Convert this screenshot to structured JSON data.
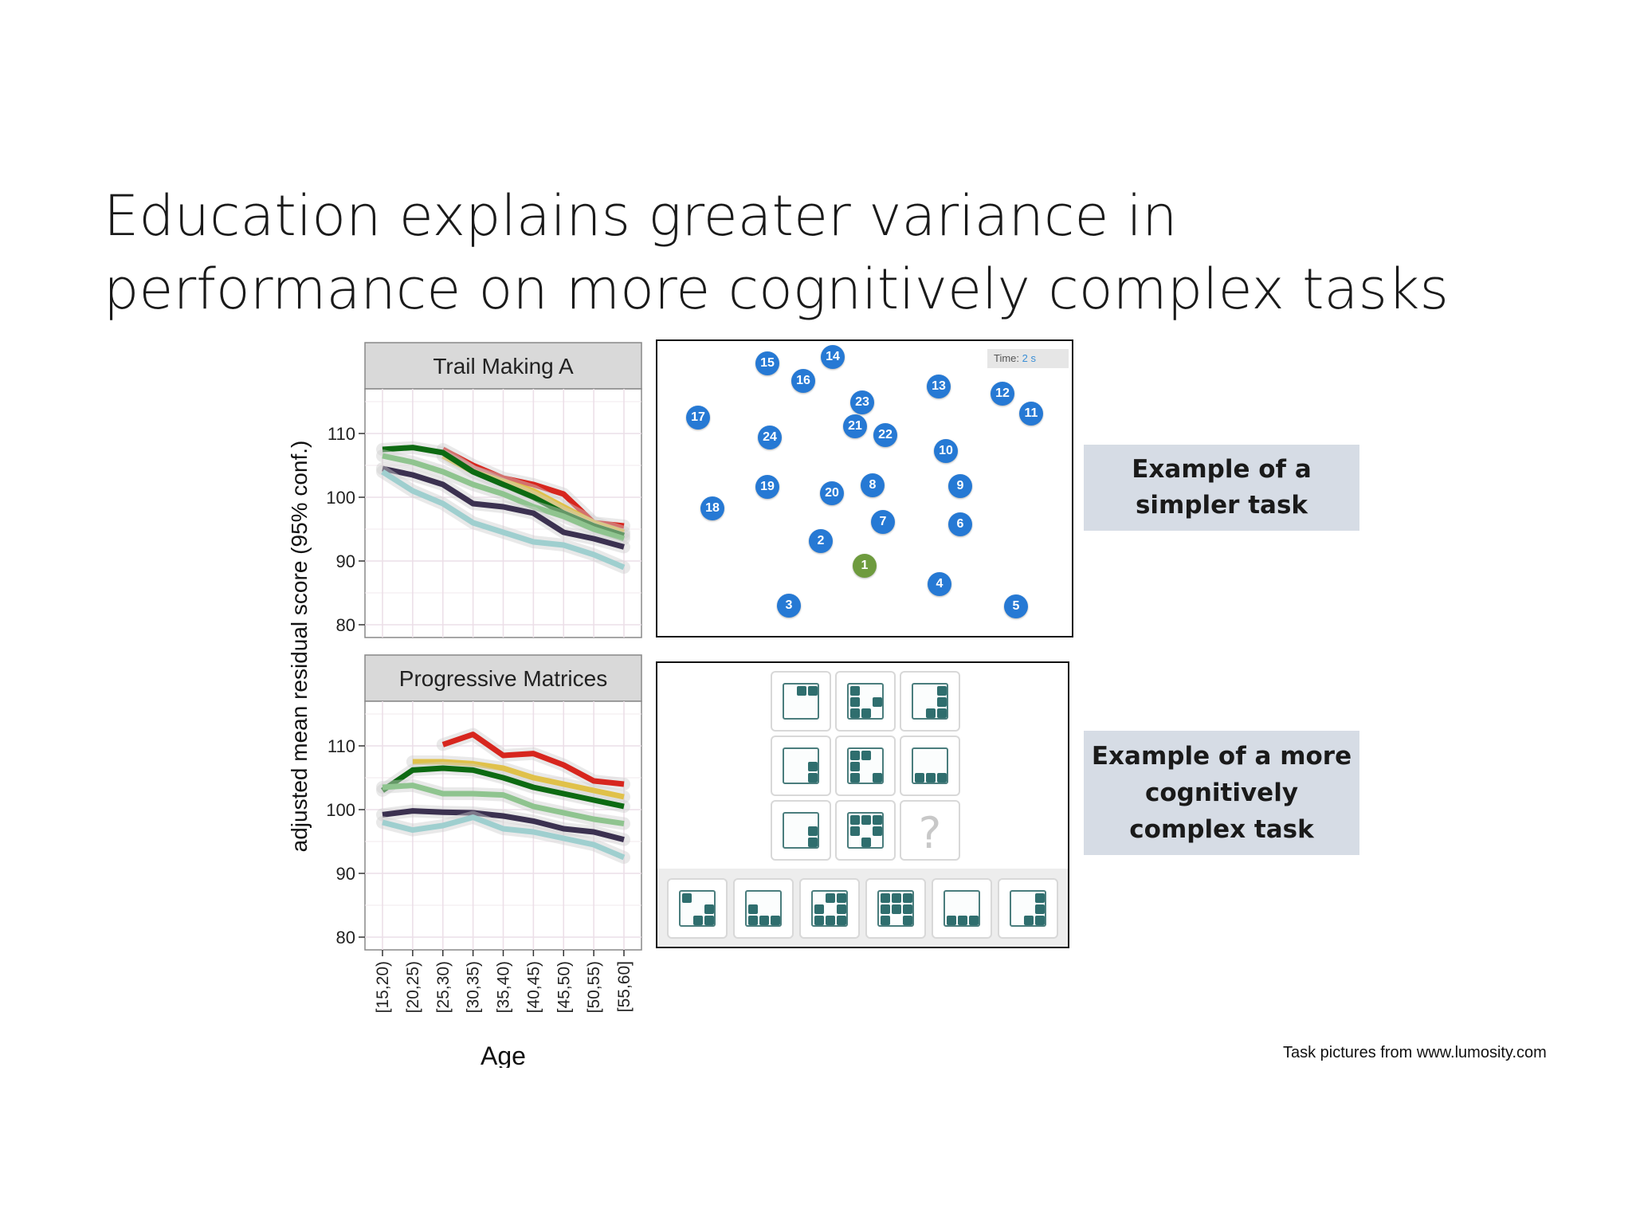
{
  "slide": {
    "title_line1": "Education explains greater variance in",
    "title_line2": "performance on more cognitively complex tasks",
    "example_simple": [
      "Example of a",
      "simpler task"
    ],
    "example_complex": [
      "Example of a more",
      "cognitively",
      "complex task"
    ],
    "credit": "Task pictures from www.lumosity.com"
  },
  "trail_task": {
    "time_label": "Time:",
    "time_value": "2 s",
    "dots": [
      {
        "label": "1",
        "start": true
      },
      {
        "label": "2"
      },
      {
        "label": "3"
      },
      {
        "label": "4"
      },
      {
        "label": "5"
      },
      {
        "label": "6"
      },
      {
        "label": "7"
      },
      {
        "label": "8"
      },
      {
        "label": "9"
      },
      {
        "label": "10"
      },
      {
        "label": "11"
      },
      {
        "label": "12"
      },
      {
        "label": "13"
      },
      {
        "label": "14"
      },
      {
        "label": "15"
      },
      {
        "label": "16"
      },
      {
        "label": "17"
      },
      {
        "label": "18"
      },
      {
        "label": "19"
      },
      {
        "label": "20"
      },
      {
        "label": "21"
      },
      {
        "label": "22"
      },
      {
        "label": "23"
      },
      {
        "label": "24"
      }
    ]
  },
  "matrix_task": {
    "question_mark": "?",
    "grid_icons": [
      "sq-top-right-2",
      "sq-l-shape",
      "sq-stair",
      "sq-right-2",
      "sq-t-shape",
      "sq-bottom-3",
      "sq-right-corner",
      "sq-cross",
      "unknown"
    ],
    "answer_icons": [
      "sq-diag",
      "sq-bottom-row",
      "sq-full-mix",
      "sq-full-mix-2",
      "sq-bottom-row-3",
      "sq-right-corner-2"
    ]
  },
  "colors": {
    "red": "#d7261e",
    "yellow": "#e0c14a",
    "dark_green": "#0d6a12",
    "light_green": "#8fc48f",
    "dark_purple": "#3b3150",
    "light_teal": "#9fcfcf",
    "strip_bg": "#d9d9d9",
    "dot_blue": "#2679d4",
    "dot_green": "#6e9b3e",
    "label_bg": "#d6dce5"
  },
  "chart_data": [
    {
      "type": "line",
      "title": "Trail Making A",
      "xlabel": "Age",
      "ylabel": "adjusted mean residual score (95% conf.)",
      "categories": [
        "[15,20)",
        "[20,25)",
        "[25,30)",
        "[30,35)",
        "[35,40)",
        "[40,45)",
        "[45,50)",
        "[50,55)",
        "[55,60]"
      ],
      "ylim": [
        78,
        117
      ],
      "yticks": [
        80,
        90,
        100,
        110
      ],
      "grid": true,
      "series": [
        {
          "color": "#d7261e",
          "values": [
            null,
            null,
            107.5,
            105,
            103,
            102,
            100.5,
            96,
            95.5
          ]
        },
        {
          "color": "#e0c14a",
          "values": [
            null,
            null,
            106.5,
            104,
            102.5,
            101,
            98.5,
            96,
            94.5
          ]
        },
        {
          "color": "#0d6a12",
          "values": [
            107.5,
            107.8,
            107,
            104,
            102,
            100,
            97.5,
            95.5,
            94
          ]
        },
        {
          "color": "#8fc48f",
          "values": [
            106.5,
            105.5,
            104,
            102,
            100.5,
            98.5,
            97,
            95,
            93.5
          ]
        },
        {
          "color": "#3b3150",
          "values": [
            104.5,
            103.5,
            102,
            99,
            98.5,
            97.5,
            94.5,
            93.5,
            92.2
          ]
        },
        {
          "color": "#9fcfcf",
          "values": [
            104,
            101,
            99,
            96,
            94.5,
            93,
            92.5,
            91,
            89
          ]
        }
      ]
    },
    {
      "type": "line",
      "title": "Progressive Matrices",
      "xlabel": "Age",
      "ylabel": "adjusted mean residual score (95% conf.)",
      "categories": [
        "[15,20)",
        "[20,25)",
        "[25,30)",
        "[30,35)",
        "[35,40)",
        "[40,45)",
        "[45,50)",
        "[50,55)",
        "[55,60]"
      ],
      "ylim": [
        78,
        117
      ],
      "yticks": [
        80,
        90,
        100,
        110
      ],
      "grid": true,
      "series": [
        {
          "color": "#d7261e",
          "values": [
            null,
            null,
            110.2,
            111.8,
            108.5,
            108.8,
            107,
            104.5,
            104
          ]
        },
        {
          "color": "#e0c14a",
          "values": [
            null,
            107.5,
            107.5,
            107.2,
            106.5,
            105,
            104,
            103,
            102
          ]
        },
        {
          "color": "#0d6a12",
          "values": [
            103,
            106.2,
            106.5,
            106.2,
            105,
            103.5,
            102.5,
            101.5,
            100.5
          ]
        },
        {
          "color": "#8fc48f",
          "values": [
            103.5,
            103.8,
            102.5,
            102.5,
            102.3,
            100.5,
            99.5,
            98.5,
            97.8
          ]
        },
        {
          "color": "#3b3150",
          "values": [
            99.2,
            99.8,
            99.6,
            99.5,
            99,
            98.2,
            97,
            96.5,
            95.3
          ]
        },
        {
          "color": "#9fcfcf",
          "values": [
            98,
            96.8,
            97.5,
            98.8,
            97,
            96.5,
            95.5,
            94.5,
            92.5
          ]
        }
      ]
    }
  ]
}
